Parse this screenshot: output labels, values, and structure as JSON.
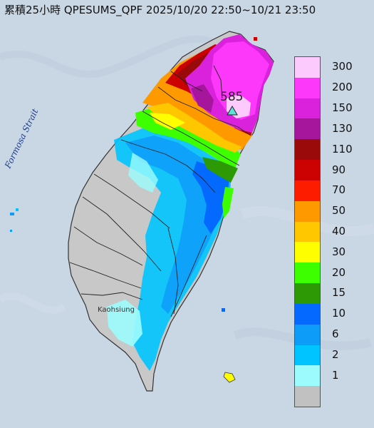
{
  "header": {
    "title": "累積25小時 QPESUMS_QPF 2025/10/20 22:50~10/21 23:50"
  },
  "map": {
    "strait_label": "Formosa Strait",
    "city_label": "Kaohsiung",
    "max_value": "585",
    "colors": {
      "sea": "#c9d6e4",
      "land_no_rain": "#c8c8c8",
      "county_border": "#222222"
    }
  },
  "legend": {
    "items": [
      {
        "label": "300",
        "color": "#fdcafe"
      },
      {
        "label": "200",
        "color": "#fe38fb"
      },
      {
        "label": "150",
        "color": "#da21dc"
      },
      {
        "label": "130",
        "color": "#a6169c"
      },
      {
        "label": "110",
        "color": "#9a0a0a"
      },
      {
        "label": "90",
        "color": "#cc0202"
      },
      {
        "label": "70",
        "color": "#fe1c00"
      },
      {
        "label": "50",
        "color": "#ff9900"
      },
      {
        "label": "40",
        "color": "#ffc700"
      },
      {
        "label": "30",
        "color": "#fffe00"
      },
      {
        "label": "20",
        "color": "#3eff00"
      },
      {
        "label": "15",
        "color": "#2d9a05"
      },
      {
        "label": "10",
        "color": "#0369ff"
      },
      {
        "label": "6",
        "color": "#0d9df9"
      },
      {
        "label": "2",
        "color": "#00c4ff"
      },
      {
        "label": "1",
        "color": "#9cfcfd"
      },
      {
        "label": "",
        "color": "#c1c1c1"
      }
    ]
  }
}
